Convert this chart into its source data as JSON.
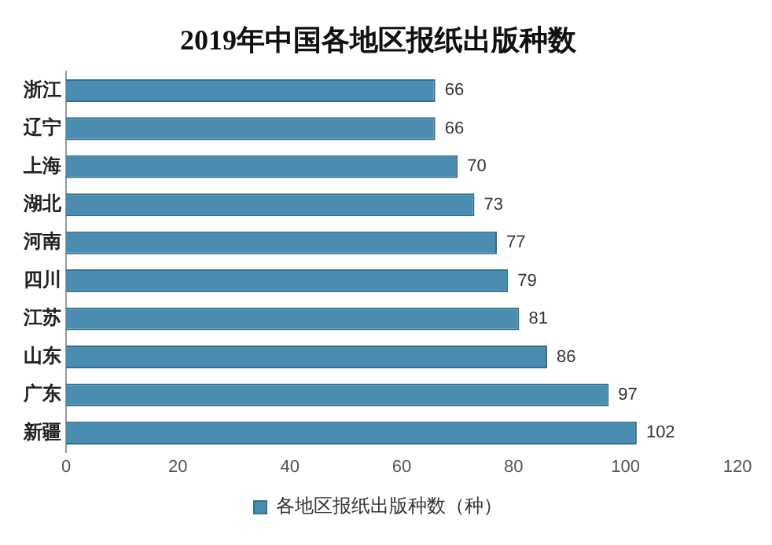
{
  "chart_data": {
    "type": "bar",
    "orientation": "horizontal",
    "title": "2019年中国各地区报纸出版种数",
    "categories": [
      "浙江",
      "辽宁",
      "上海",
      "湖北",
      "河南",
      "四川",
      "江苏",
      "山东",
      "广东",
      "新疆"
    ],
    "series": [
      {
        "name": "各地区报纸出版种数（种）",
        "color": "#4a8db0",
        "values": [
          66,
          66,
          70,
          73,
          77,
          79,
          81,
          86,
          97,
          102
        ]
      }
    ],
    "xlim": [
      0,
      120
    ],
    "xticks": [
      0,
      20,
      40,
      60,
      80,
      100,
      120
    ],
    "data_labels": true,
    "legend": "bottom",
    "grid": false
  }
}
